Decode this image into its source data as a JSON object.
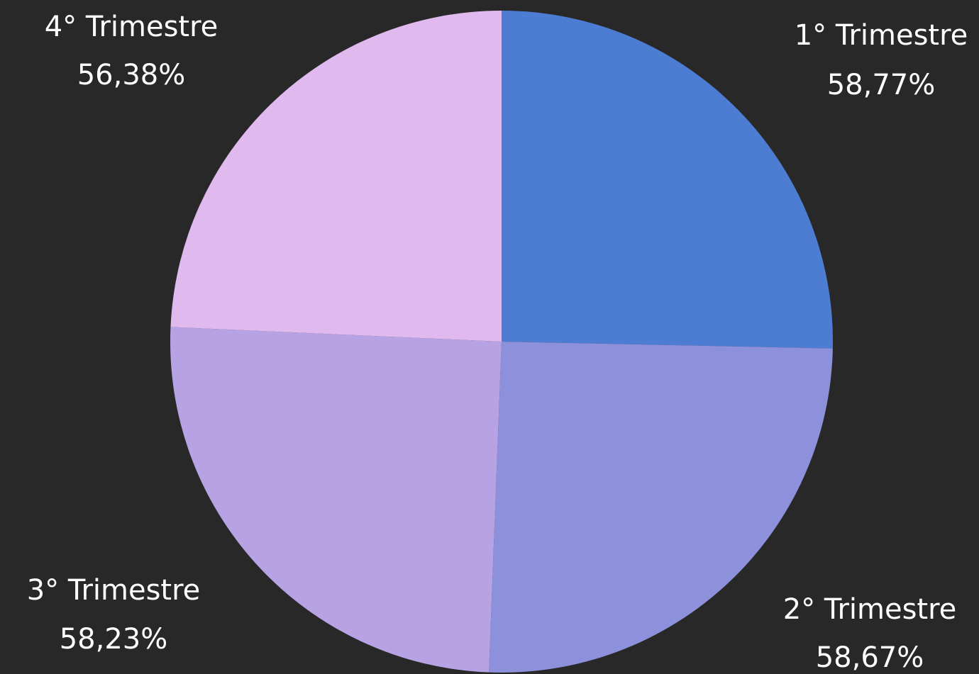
{
  "chart_data": {
    "type": "pie",
    "slices": [
      {
        "label": "1° Trimestre",
        "value": 58.77,
        "value_label": "58,77%",
        "color": "#4d7dd2"
      },
      {
        "label": "2° Trimestre",
        "value": 58.67,
        "value_label": "58,67%",
        "color": "#8d90db"
      },
      {
        "label": "3° Trimestre",
        "value": 58.23,
        "value_label": "58,23%",
        "color": "#b7a2e4"
      },
      {
        "label": "4° Trimestre",
        "value": 56.38,
        "value_label": "56,38%",
        "color": "#e0b9ef"
      }
    ],
    "start": "12 o'clock",
    "direction": "clockwise",
    "labels": "outside, name above value"
  }
}
